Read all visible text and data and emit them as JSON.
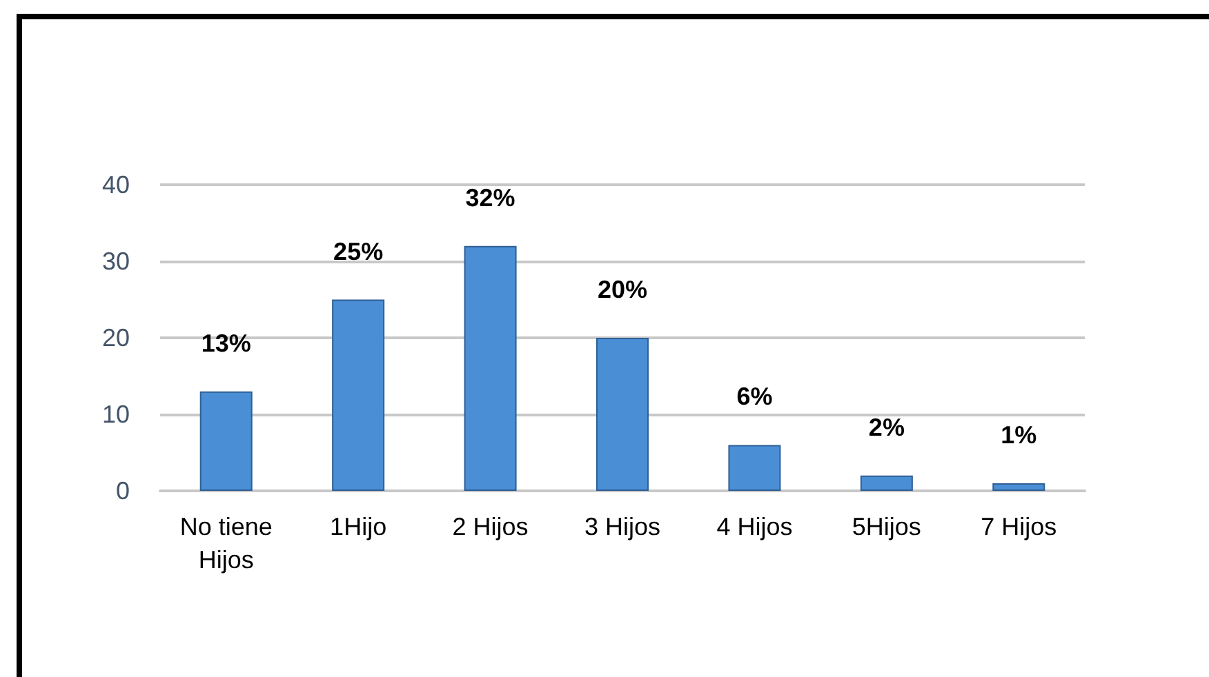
{
  "chart_data": {
    "type": "bar",
    "categories": [
      "No tiene\nHijos",
      "1Hijo",
      "2 Hijos",
      "3 Hijos",
      "4 Hijos",
      "5Hijos",
      "7 Hijos"
    ],
    "values": [
      13,
      25,
      32,
      20,
      6,
      2,
      1
    ],
    "value_labels": [
      "13%",
      "25%",
      "32%",
      "20%",
      "6%",
      "2%",
      "1%"
    ],
    "color": "#4a8fd6",
    "ylim": [
      0,
      40
    ],
    "yticks": [
      0,
      10,
      20,
      30,
      40
    ],
    "grid": "y"
  }
}
